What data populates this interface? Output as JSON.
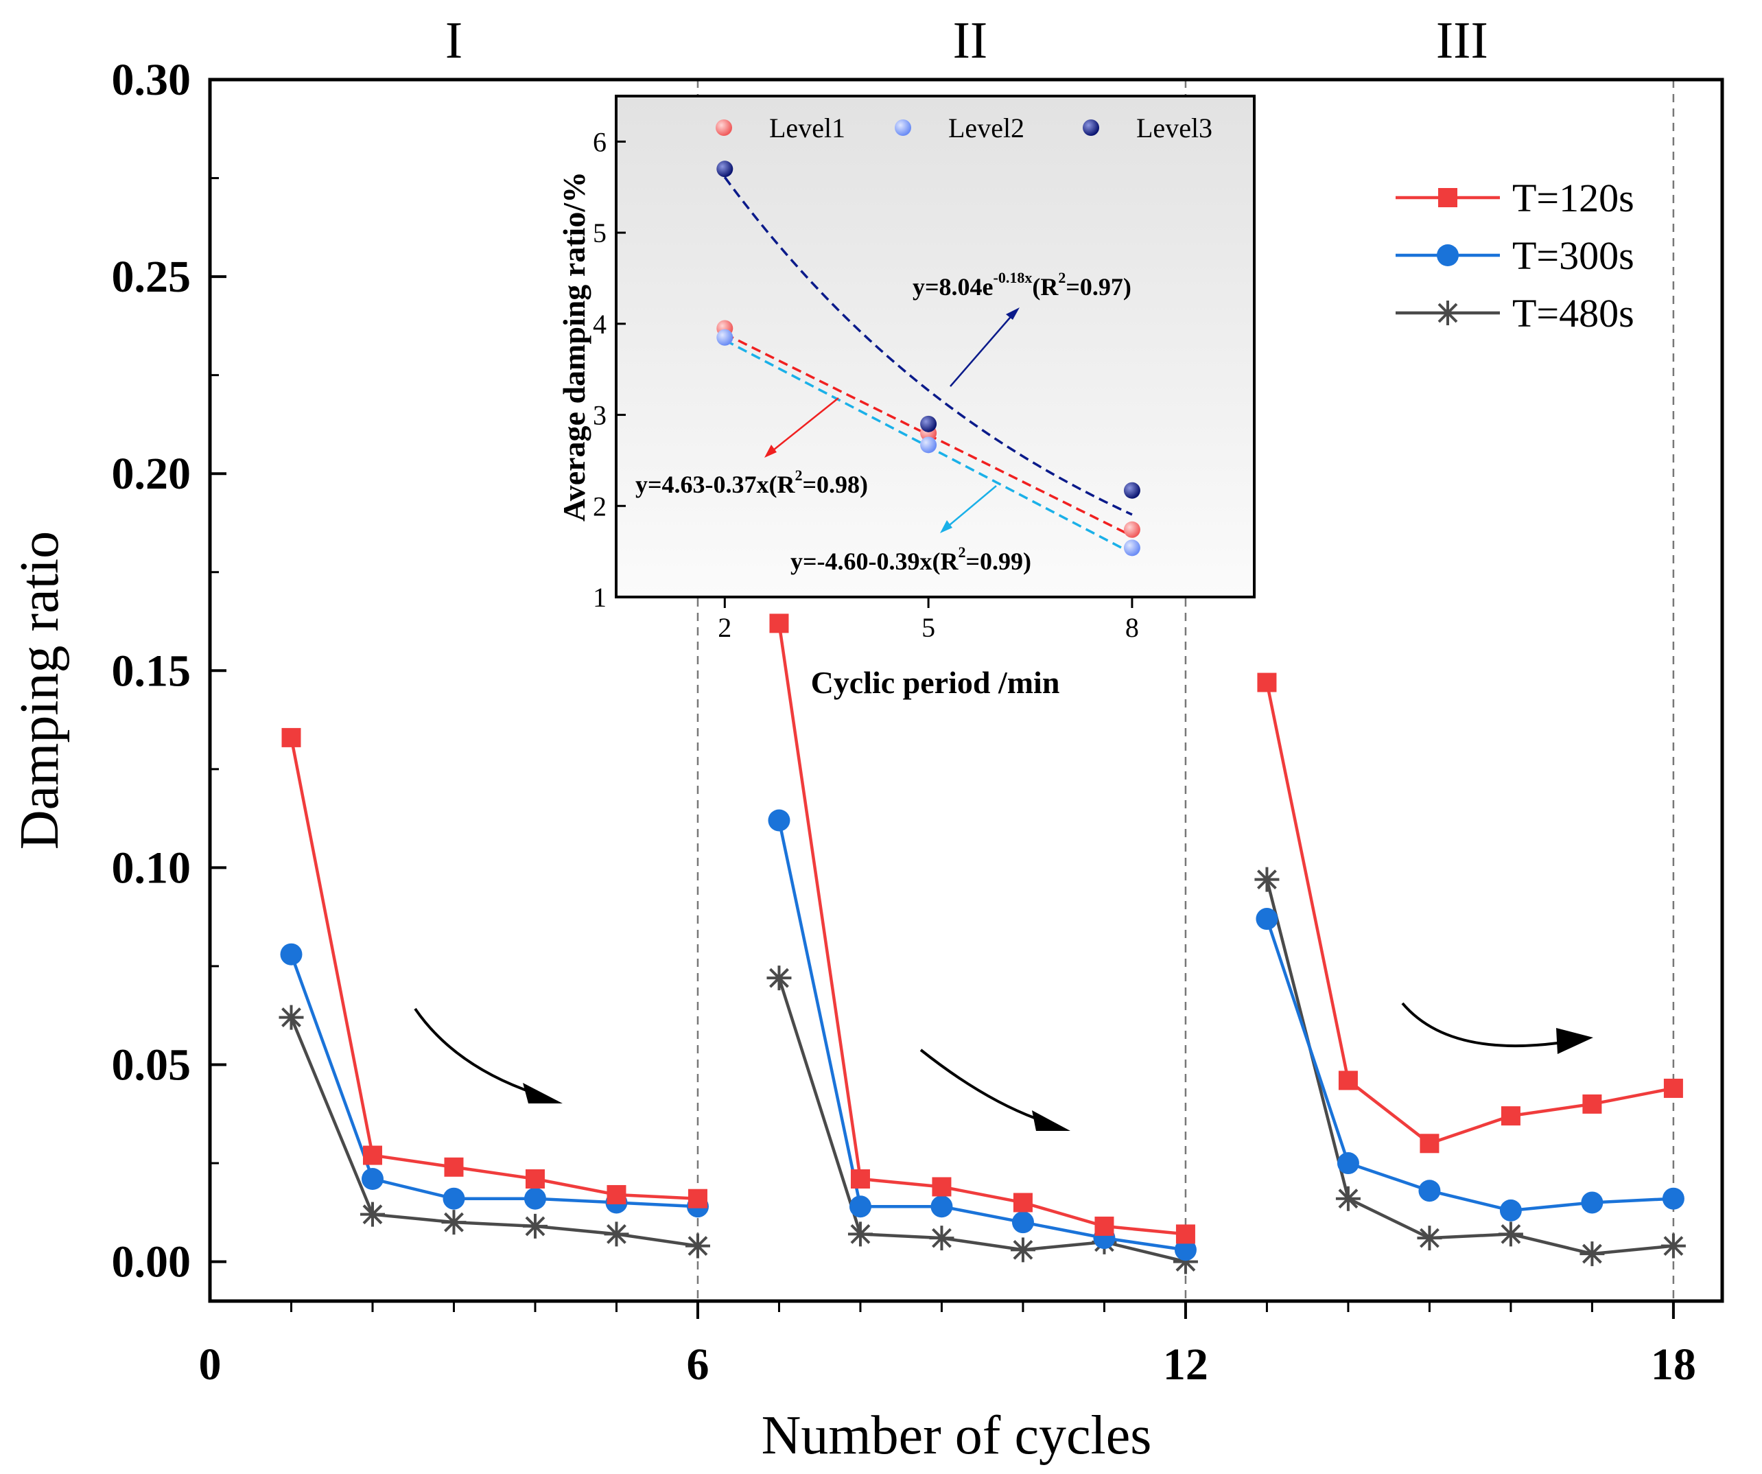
{
  "chart_data": [
    {
      "type": "line",
      "xlabel": "Number of cycles",
      "ylabel": "Damping ratio",
      "xlim": [
        0,
        18.6
      ],
      "ylim": [
        -0.01,
        0.3
      ],
      "xticks": [
        0,
        6,
        12,
        18
      ],
      "xtick_labels": [
        "0",
        "6",
        "12",
        "18"
      ],
      "yticks": [
        0.0,
        0.05,
        0.1,
        0.15,
        0.2,
        0.25,
        0.3
      ],
      "ytick_labels": [
        "0.00",
        "0.05",
        "0.10",
        "0.15",
        "0.20",
        "0.25",
        "0.30"
      ],
      "regions": [
        {
          "label": "I",
          "x_center": 3
        },
        {
          "label": "II",
          "x_center": 9.35
        },
        {
          "label": "III",
          "x_center": 15.4
        }
      ],
      "dividers_x": [
        6,
        12,
        18
      ],
      "legend_position": "top-right",
      "series": [
        {
          "name": "T=120s",
          "color": "#f03c3c",
          "marker": "square",
          "x": [
            1,
            2,
            3,
            4,
            5,
            6,
            7,
            8,
            9,
            10,
            11,
            12,
            13,
            14,
            15,
            16,
            17,
            18
          ],
          "y": [
            0.133,
            0.027,
            0.024,
            0.021,
            0.017,
            0.016,
            0.162,
            0.021,
            0.019,
            0.015,
            0.009,
            0.007,
            0.147,
            0.046,
            0.03,
            0.037,
            0.04,
            0.044
          ]
        },
        {
          "name": "T=300s",
          "color": "#1a73d9",
          "marker": "circle",
          "x": [
            1,
            2,
            3,
            4,
            5,
            6,
            7,
            8,
            9,
            10,
            11,
            12,
            13,
            14,
            15,
            16,
            17,
            18
          ],
          "y": [
            0.078,
            0.021,
            0.016,
            0.016,
            0.015,
            0.014,
            0.112,
            0.014,
            0.014,
            0.01,
            0.006,
            0.003,
            0.087,
            0.025,
            0.018,
            0.013,
            0.015,
            0.016
          ]
        },
        {
          "name": "T=480s",
          "color": "#4a4a4a",
          "marker": "asterisk",
          "x": [
            1,
            2,
            3,
            4,
            5,
            6,
            7,
            8,
            9,
            10,
            11,
            12,
            13,
            14,
            15,
            16,
            17,
            18
          ],
          "y": [
            0.062,
            0.012,
            0.01,
            0.009,
            0.007,
            0.004,
            0.072,
            0.007,
            0.006,
            0.003,
            0.005,
            0.0,
            0.097,
            0.016,
            0.006,
            0.007,
            0.002,
            0.004
          ]
        }
      ]
    },
    {
      "type": "scatter",
      "xlabel": "Cyclic period /min",
      "ylabel": "Average damping ratio/%",
      "xlim": [
        0.4,
        9.8
      ],
      "ylim": [
        1,
        6.5
      ],
      "xticks": [
        2,
        5,
        8
      ],
      "xtick_labels": [
        "2",
        "5",
        "8"
      ],
      "yticks": [
        1,
        2,
        3,
        4,
        5,
        6
      ],
      "ytick_labels": [
        "1",
        "2",
        "3",
        "4",
        "5",
        "6"
      ],
      "legend_position": "top",
      "series": [
        {
          "name": "Level1",
          "color": "#f05a5a",
          "x": [
            2,
            5,
            8
          ],
          "y": [
            3.95,
            2.8,
            1.74
          ]
        },
        {
          "name": "Level2",
          "color": "#6a8cf5",
          "x": [
            2,
            5,
            8
          ],
          "y": [
            3.85,
            2.67,
            1.54
          ]
        },
        {
          "name": "Level3",
          "color": "#0a1470",
          "x": [
            2,
            5,
            8
          ],
          "y": [
            5.7,
            2.9,
            2.17
          ]
        }
      ],
      "fits": [
        {
          "series": "Level1",
          "color": "#f02020"
        },
        {
          "series": "Level2",
          "color": "#1ab0e8"
        },
        {
          "series": "Level3",
          "color": "#0a1a8a"
        }
      ],
      "annotations": {
        "level3_eq": {
          "pre": "y=8.04e",
          "sup": "-0.18x",
          "post": "(R",
          "r2sup": "2",
          "tail": "=0.97)"
        },
        "level1_eq": {
          "pre": "y=4.63-0.37x(R",
          "r2sup": "2",
          "tail": "=0.98)"
        },
        "level2_eq": {
          "pre": "y=-4.60-0.39x(R",
          "r2sup": "2",
          "tail": "=0.99)"
        }
      }
    }
  ]
}
